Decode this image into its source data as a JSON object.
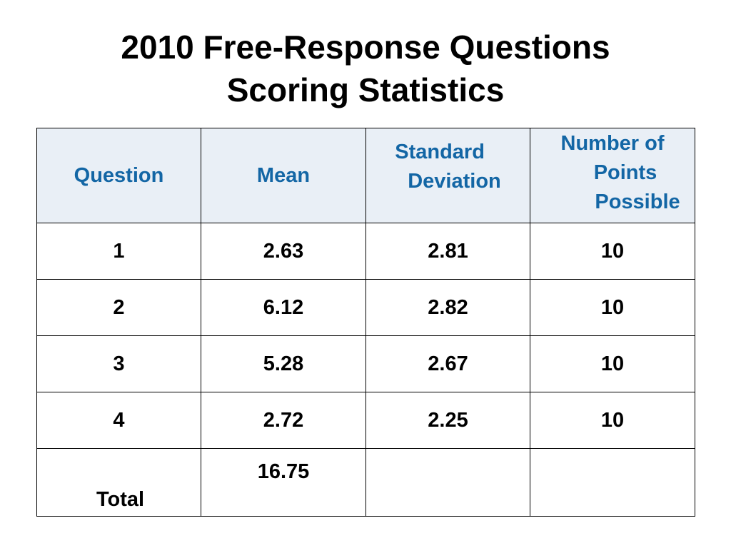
{
  "slide": {
    "title_line1": "2010 Free-Response Questions",
    "title_line2": "Scoring Statistics"
  },
  "table": {
    "headers": {
      "question": "Question",
      "mean": "Mean",
      "sd_line1": "Standard",
      "sd_line2": "Deviation",
      "points_line1": "Number of",
      "points_line2": "Points",
      "points_line3": "Possible"
    },
    "rows": [
      {
        "question": "1",
        "mean": "2.63",
        "sd": "2.81",
        "points": "10"
      },
      {
        "question": "2",
        "mean": "6.12",
        "sd": "2.82",
        "points": "10"
      },
      {
        "question": "3",
        "mean": "5.28",
        "sd": "2.67",
        "points": "10"
      },
      {
        "question": "4",
        "mean": "2.72",
        "sd": "2.25",
        "points": "10"
      }
    ],
    "total": {
      "label": "Total",
      "mean": "16.75",
      "sd": "",
      "points": ""
    }
  },
  "colors": {
    "header_text": "#1366a5",
    "header_background": "#e9eff6",
    "border": "#000000"
  }
}
